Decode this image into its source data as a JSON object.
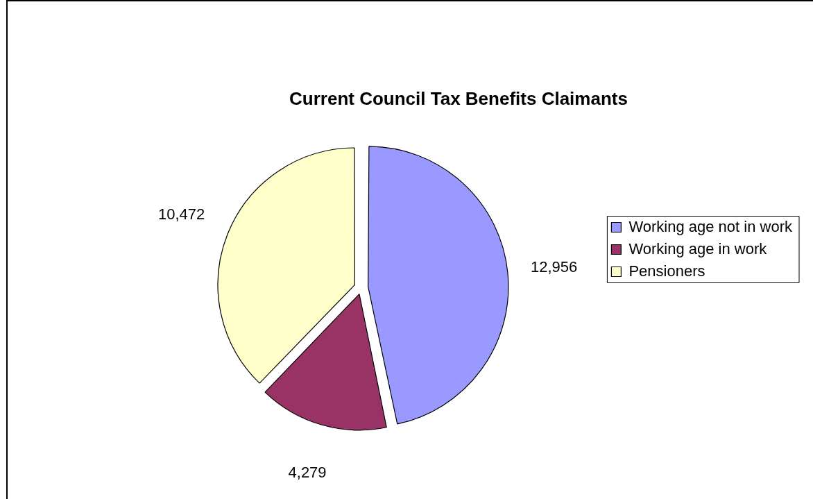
{
  "chart_data": {
    "type": "pie",
    "title": "Current Council Tax Benefits Claimants",
    "categories": [
      "Working age not in work",
      "Working age in work",
      "Pensioners"
    ],
    "values": [
      12956,
      4279,
      10472
    ],
    "colors": [
      "#9999ff",
      "#993366",
      "#ffffcc"
    ],
    "value_labels": [
      "12,956",
      "4,279",
      "10,472"
    ],
    "legend": "right"
  }
}
